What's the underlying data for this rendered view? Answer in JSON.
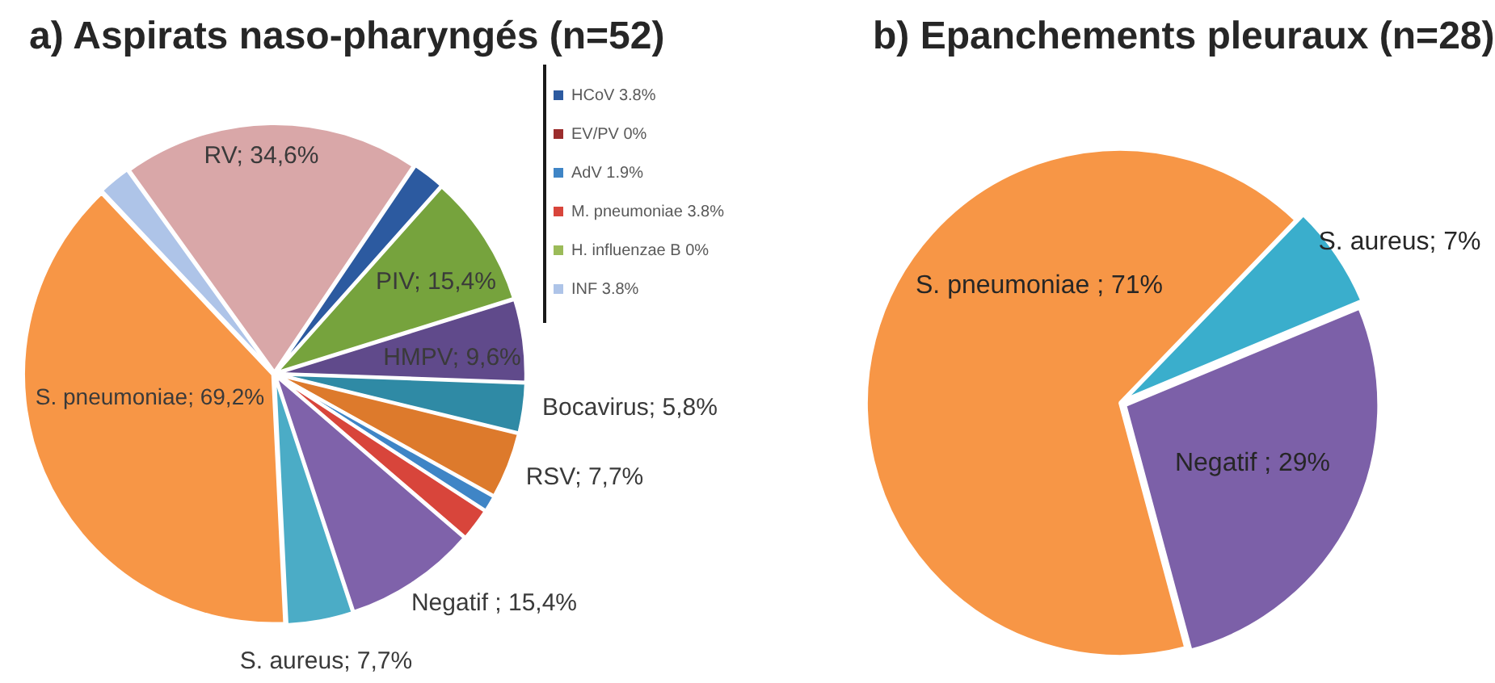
{
  "chart_data": [
    {
      "type": "pie",
      "title": "a) Aspirats naso-pharyngés (n=52)",
      "categories": [
        "HCoV 3.8%",
        "EV/PV 0%",
        "PIV",
        "HMPV",
        "Bocavirus",
        "RSV",
        "AdV 1.9%",
        "M. pneumoniae 3.8%",
        "H. influenzae B 0%",
        "Negatif",
        "S. aureus",
        "S. pneumoniae",
        "INF 3.8%",
        "RV"
      ],
      "values": [
        3.8,
        0,
        15.4,
        9.6,
        5.8,
        7.7,
        1.9,
        3.8,
        0,
        15.4,
        7.7,
        69.2,
        3.8,
        34.6
      ],
      "colors": [
        "#2c5aa0",
        "#9b2d2d",
        "#76a33d",
        "#604a8b",
        "#2f8aa5",
        "#dd7a2c",
        "#3f85c6",
        "#d8453b",
        "#9bbb59",
        "#7f62aa",
        "#4bacc6",
        "#f79646",
        "#aec4e8",
        "#d9a7a8"
      ],
      "value_labels": [
        null,
        null,
        "15,4%",
        "9,6%",
        "5,8%",
        "7,7%",
        null,
        null,
        null,
        "15,4%",
        "7,7%",
        "69,2%",
        null,
        "34,6%"
      ],
      "legend": "top right"
    },
    {
      "type": "pie",
      "title": "b) Epanchements pleuraux (n=28)",
      "categories": [
        "S. pneumoniae",
        "S. aureus",
        "Negatif"
      ],
      "values": [
        71,
        7,
        29
      ],
      "colors": [
        "#f79646",
        "#3aaecc",
        "#7c60a8"
      ],
      "value_labels": [
        "71%",
        "7%",
        "29%"
      ]
    }
  ]
}
